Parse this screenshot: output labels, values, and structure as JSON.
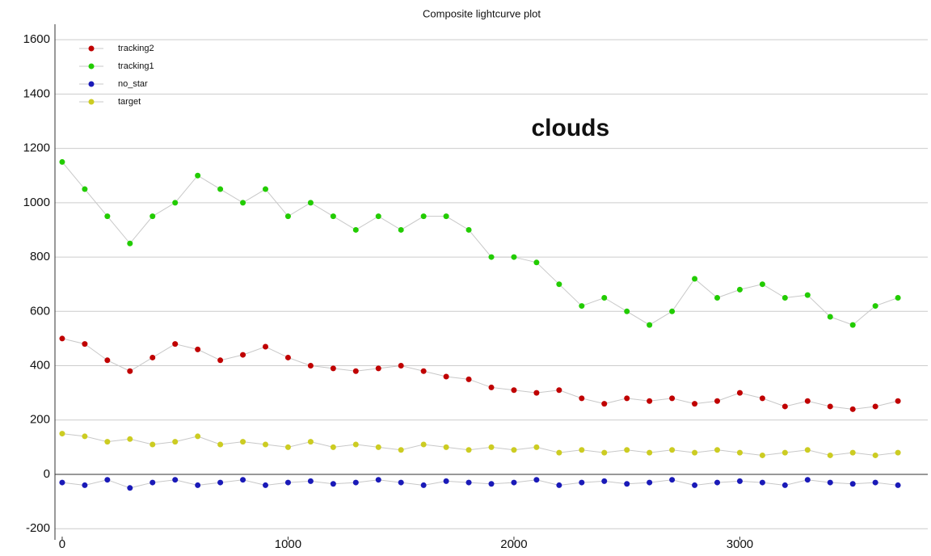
{
  "chart_data": {
    "type": "scatter",
    "title": "Composite lightcurve plot",
    "annotation": "clouds",
    "annotation_x": 2250,
    "annotation_y": 1270,
    "x": [
      0,
      100,
      200,
      300,
      400,
      500,
      600,
      700,
      800,
      900,
      1000,
      1100,
      1200,
      1300,
      1400,
      1500,
      1600,
      1700,
      1800,
      1900,
      2000,
      2100,
      2200,
      2300,
      2400,
      2500,
      2600,
      2700,
      2800,
      2900,
      3000,
      3100,
      3200,
      3300,
      3400,
      3500,
      3600,
      3700
    ],
    "series": [
      {
        "name": "tracking2",
        "color": "#c00000",
        "values": [
          500,
          480,
          420,
          380,
          430,
          480,
          460,
          420,
          440,
          470,
          430,
          400,
          390,
          380,
          390,
          400,
          380,
          360,
          350,
          320,
          310,
          300,
          310,
          280,
          260,
          280,
          270,
          280,
          260,
          270,
          300,
          280,
          250,
          270,
          250,
          240,
          250,
          270
        ]
      },
      {
        "name": "tracking1",
        "color": "#22cc00",
        "values": [
          1150,
          1050,
          950,
          850,
          950,
          1000,
          1100,
          1050,
          1000,
          1050,
          950,
          1000,
          950,
          900,
          950,
          900,
          950,
          950,
          900,
          800,
          800,
          780,
          700,
          620,
          650,
          600,
          550,
          600,
          720,
          650,
          680,
          700,
          650,
          660,
          580,
          550,
          620,
          650
        ]
      },
      {
        "name": "no_star",
        "color": "#1a1ab8",
        "values": [
          -30,
          -40,
          -20,
          -50,
          -30,
          -20,
          -40,
          -30,
          -20,
          -40,
          -30,
          -25,
          -35,
          -30,
          -20,
          -30,
          -40,
          -25,
          -30,
          -35,
          -30,
          -20,
          -40,
          -30,
          -25,
          -35,
          -30,
          -20,
          -40,
          -30,
          -25,
          -30,
          -40,
          -20,
          -30,
          -35,
          -30,
          -40
        ]
      },
      {
        "name": "target",
        "color": "#cccc22",
        "values": [
          150,
          140,
          120,
          130,
          110,
          120,
          140,
          110,
          120,
          110,
          100,
          120,
          100,
          110,
          100,
          90,
          110,
          100,
          90,
          100,
          90,
          100,
          80,
          90,
          80,
          90,
          80,
          90,
          80,
          90,
          80,
          70,
          80,
          90,
          70,
          80,
          70,
          80
        ]
      }
    ],
    "xlim": [
      -32,
      3832
    ],
    "ylim": [
      -241,
      1657
    ],
    "xticks": [
      0,
      1000,
      2000,
      3000
    ],
    "yticks": [
      -200,
      0,
      200,
      400,
      600,
      800,
      1000,
      1200,
      1400,
      1600
    ],
    "grid": true,
    "legend": "upper-left"
  }
}
